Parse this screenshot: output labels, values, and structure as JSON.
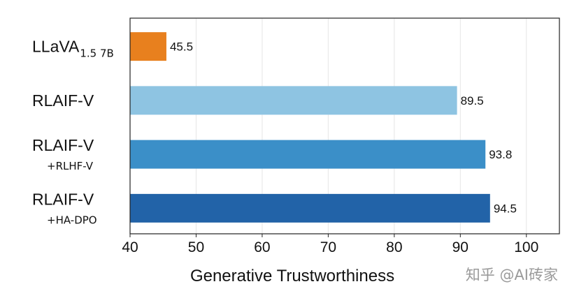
{
  "chart_data": {
    "type": "bar",
    "orientation": "horizontal",
    "title": "",
    "xlabel": "Generative Trustworthiness",
    "ylabel": "",
    "xlim": [
      40,
      105
    ],
    "xticks": [
      40,
      50,
      60,
      70,
      80,
      90,
      100
    ],
    "grid": true,
    "categories": [
      {
        "main": "LLaVA",
        "sub": "1.5 7B",
        "sub_style": "subscript"
      },
      {
        "main": "RLAIF-V",
        "sub": "",
        "sub_style": "none"
      },
      {
        "main": "RLAIF-V",
        "sub": "+RLHF-V",
        "sub_style": "below"
      },
      {
        "main": "RLAIF-V",
        "sub": "+HA-DPO",
        "sub_style": "below"
      }
    ],
    "values": [
      45.5,
      89.5,
      93.8,
      94.5
    ],
    "value_labels": [
      "45.5",
      "89.5",
      "93.8",
      "94.5"
    ],
    "colors": [
      "#e8801e",
      "#8ec4e2",
      "#3b8fc8",
      "#2263a8"
    ]
  },
  "watermark": "知乎 @AI砖家"
}
